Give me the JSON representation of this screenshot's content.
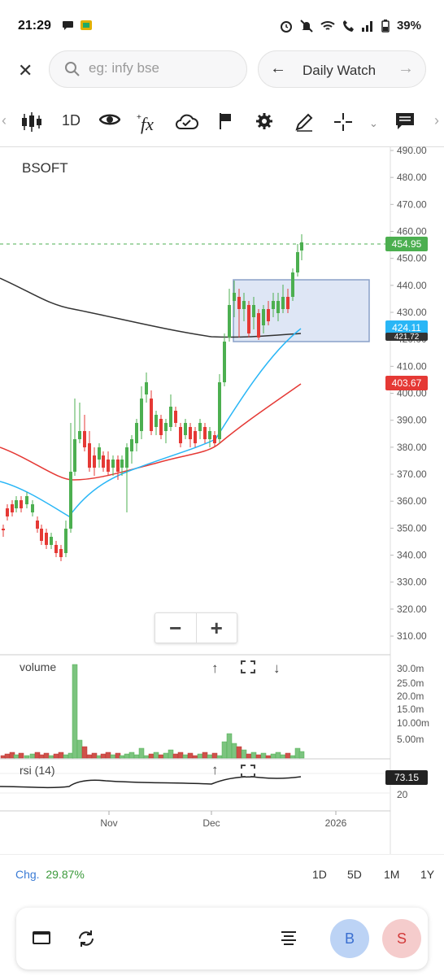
{
  "status_bar": {
    "time": "21:29",
    "battery": "39%"
  },
  "search": {
    "placeholder": "eg: infy bse"
  },
  "watchlist": {
    "label": "Daily Watch"
  },
  "toolbar": {
    "interval": "1D"
  },
  "chart": {
    "symbol": "BSOFT",
    "price_labels": {
      "last": "454.95",
      "ma_short": "424.11",
      "ma_long": "421.72",
      "ma_mid": "403.67"
    },
    "colors": {
      "up": "#4caf50",
      "down": "#e53935",
      "last": "#4caf50",
      "ma_short": "#29b6f6",
      "ma_mid": "#e53935",
      "ma_long": "#333333"
    },
    "y_axis_ticks": [
      "490.00",
      "480.00",
      "470.00",
      "460.00",
      "450.00",
      "440.00",
      "430.00",
      "420.00",
      "410.00",
      "400.00",
      "390.00",
      "380.00",
      "370.00",
      "360.00",
      "350.00",
      "340.00",
      "330.00",
      "320.00",
      "310.00"
    ],
    "x_axis_ticks": [
      "Nov",
      "Dec",
      "2026"
    ]
  },
  "volume_panel": {
    "title": "volume",
    "ticks": [
      "30.0m",
      "25.0m",
      "20.0m",
      "15.0m",
      "10.00m",
      "5.00m"
    ]
  },
  "rsi_panel": {
    "title": "rsi (14)",
    "value": "73.15",
    "ticks": [
      "20"
    ]
  },
  "bottom": {
    "change_label": "Chg.",
    "change_value": "29.87%",
    "ranges": [
      "1D",
      "5D",
      "1M",
      "1Y"
    ]
  },
  "actions": {
    "buy": "B",
    "sell": "S"
  }
}
